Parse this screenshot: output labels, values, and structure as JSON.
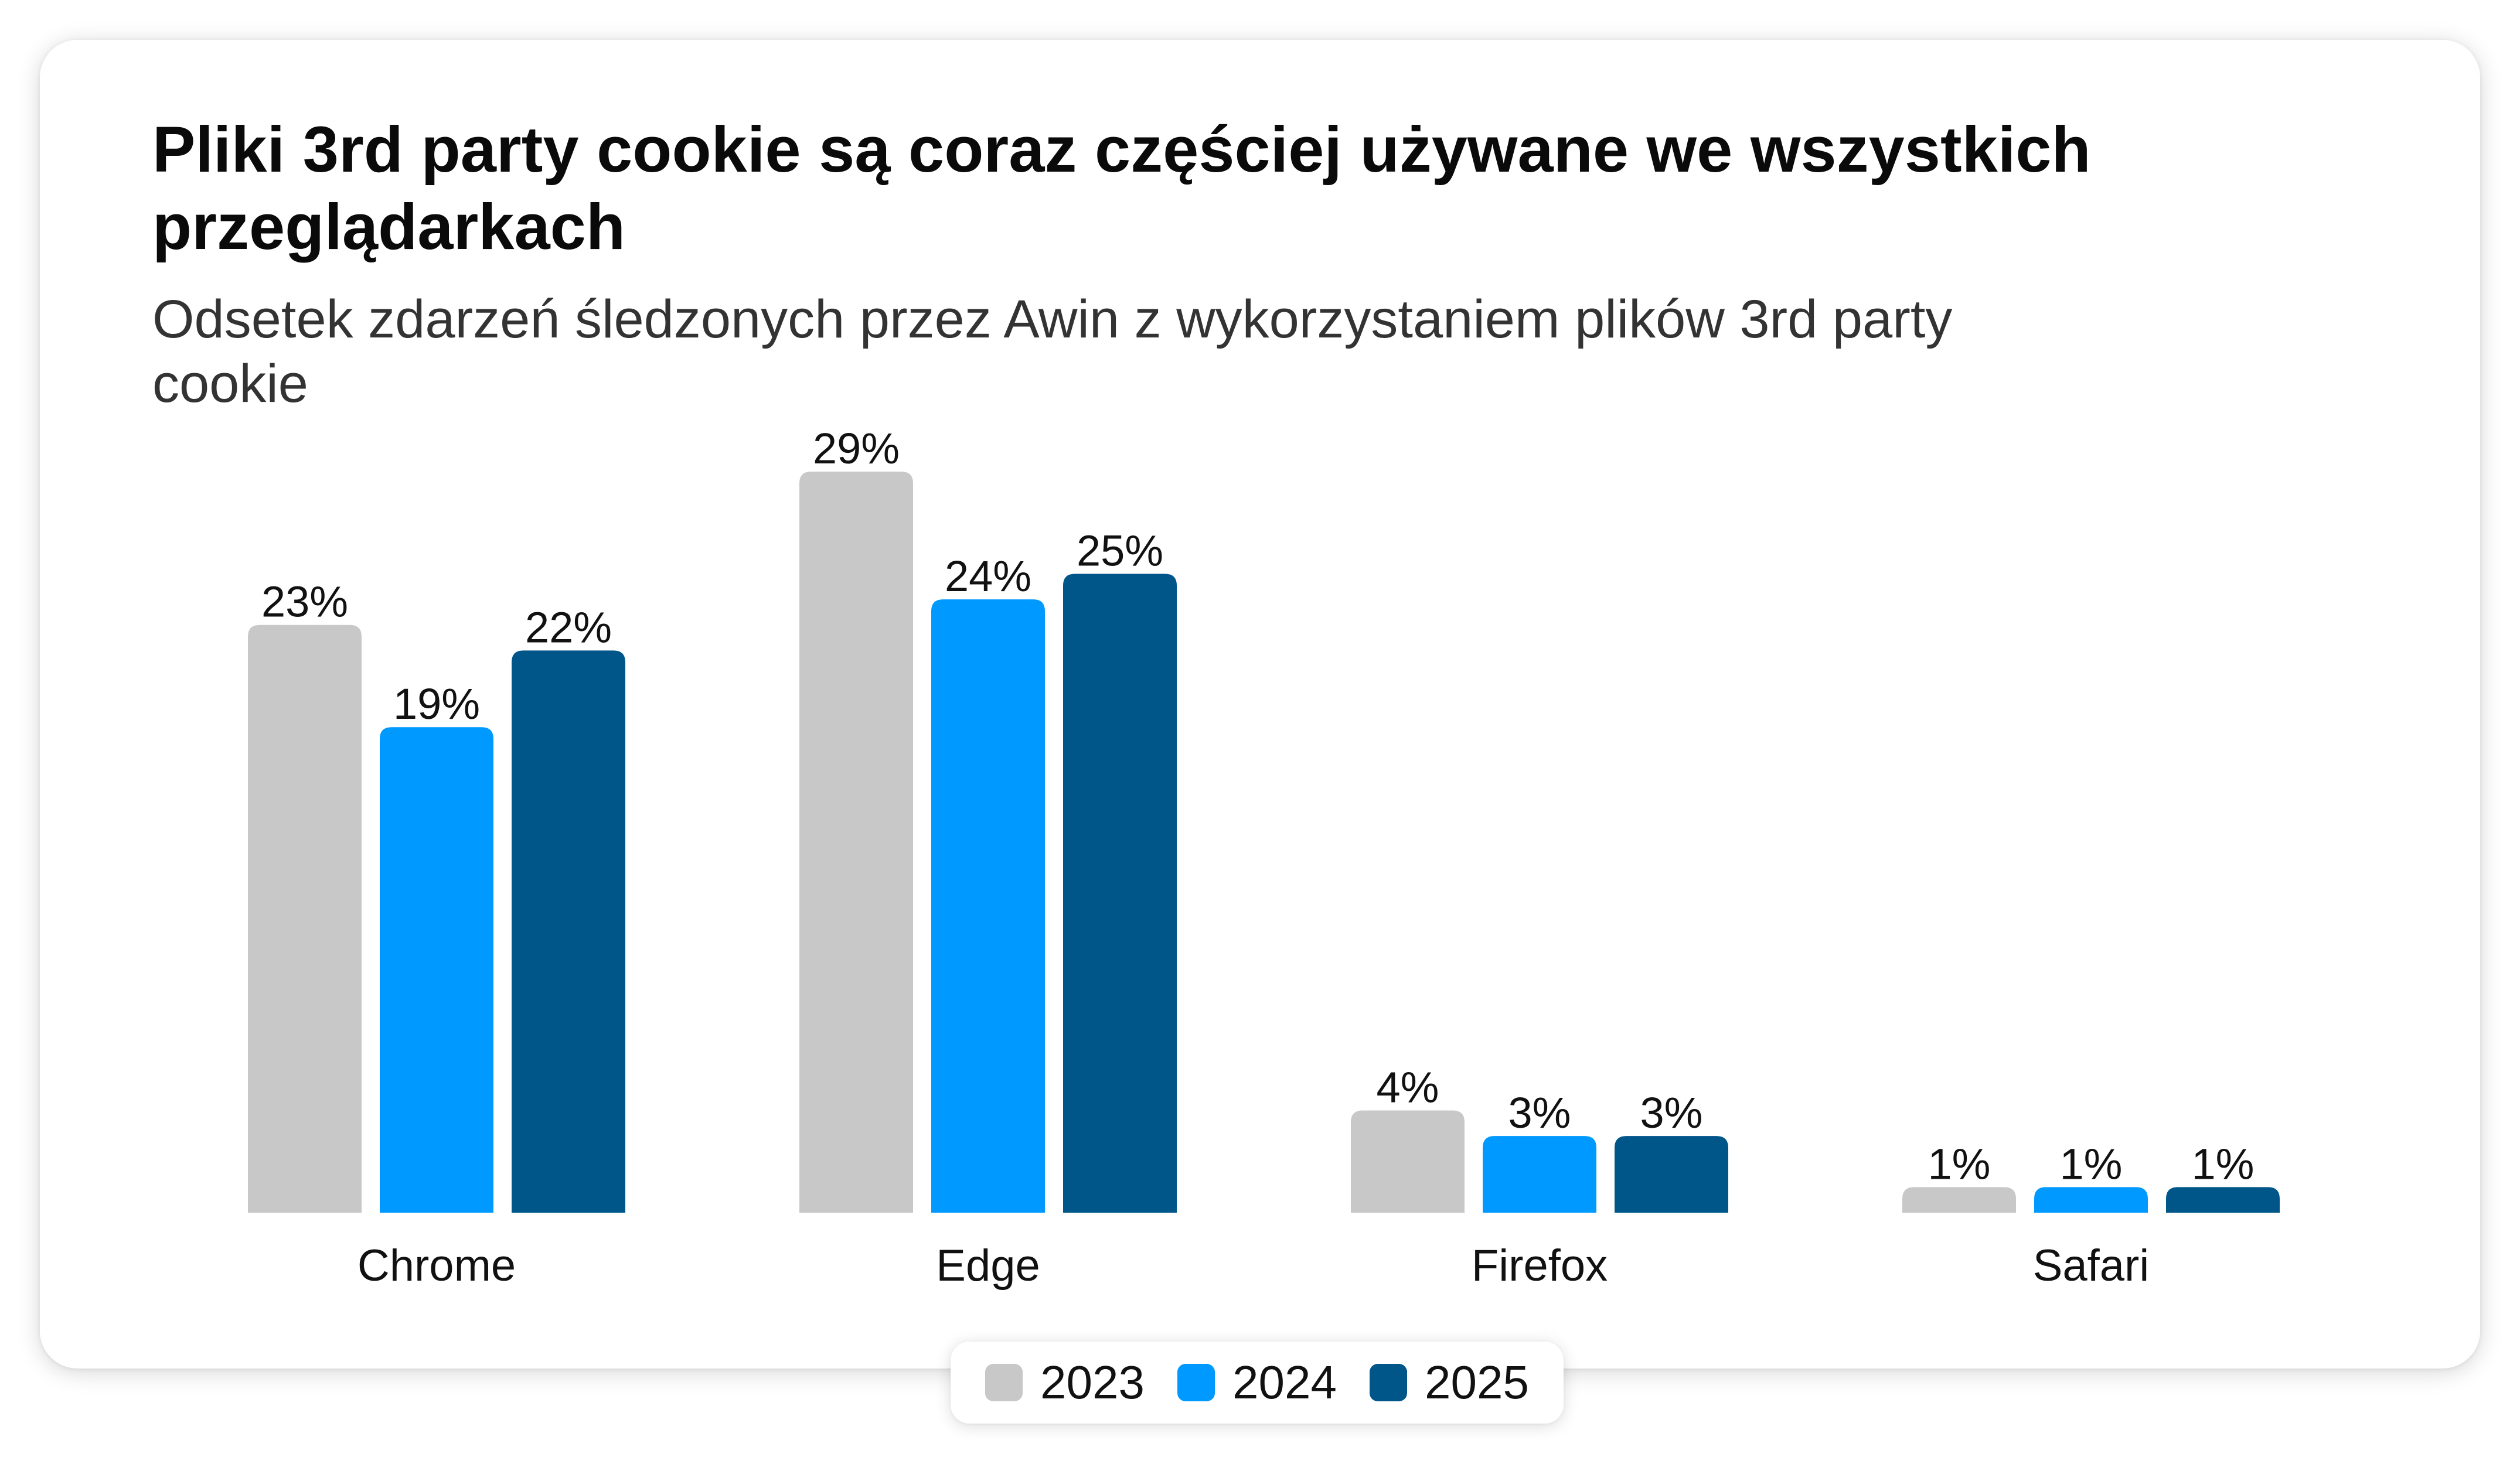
{
  "title": "Pliki 3rd party cookie są coraz częściej używane we wszystkich przeglądarkach",
  "subtitle": "Odsetek zdarzeń śledzonych przez Awin z wykorzystaniem plików 3rd party cookie",
  "colors": {
    "2023": "#c8c8c8",
    "2024": "#0099ff",
    "2025": "#005589"
  },
  "chart_data": {
    "type": "bar",
    "categories": [
      "Chrome",
      "Edge",
      "Firefox",
      "Safari"
    ],
    "series": [
      {
        "name": "2023",
        "values": [
          23,
          29,
          4,
          1
        ],
        "labels": [
          "23%",
          "29%",
          "4%",
          "1%"
        ]
      },
      {
        "name": "2024",
        "values": [
          19,
          24,
          3,
          1
        ],
        "labels": [
          "19%",
          "24%",
          "3%",
          "1%"
        ]
      },
      {
        "name": "2025",
        "values": [
          22,
          25,
          3,
          1
        ],
        "labels": [
          "22%",
          "25%",
          "3%",
          "1%"
        ]
      }
    ],
    "title": "Pliki 3rd party cookie są coraz częściej używane we wszystkich przeglądarkach",
    "subtitle": "Odsetek zdarzeń śledzonych przez Awin z wykorzystaniem plików 3rd party cookie",
    "xlabel": "",
    "ylabel": "",
    "unit": "%",
    "ylim": [
      0,
      29
    ],
    "grid": false,
    "legend": "bottom-center"
  }
}
